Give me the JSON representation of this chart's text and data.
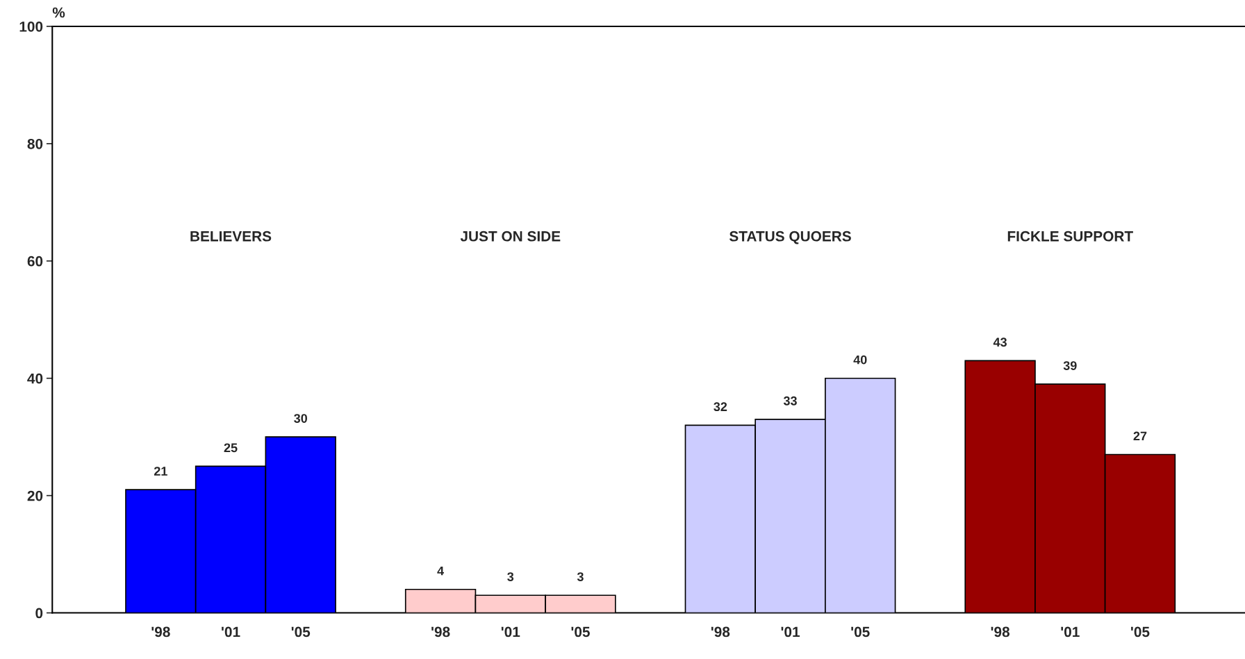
{
  "chart_data": {
    "type": "bar",
    "ylabel": "%",
    "categories": [
      "'98",
      "'01",
      "'05",
      "'98",
      "'01",
      "'05",
      "'98",
      "'01",
      "'05",
      "'98",
      "'01",
      "'05"
    ],
    "series": [
      {
        "color": "#0000ff",
        "values": [
          21,
          25,
          30,
          null,
          null,
          null,
          null,
          null,
          null,
          null,
          null,
          null
        ]
      },
      {
        "color": "#ffcccc",
        "values": [
          null,
          null,
          null,
          4,
          3,
          3,
          null,
          null,
          null,
          null,
          null,
          null
        ]
      },
      {
        "color": "#ccccff",
        "values": [
          null,
          null,
          null,
          null,
          null,
          null,
          32,
          33,
          40,
          null,
          null,
          null
        ]
      },
      {
        "color": "#990000",
        "values": [
          null,
          null,
          null,
          null,
          null,
          null,
          null,
          null,
          null,
          43,
          39,
          27
        ]
      }
    ],
    "annotations": [
      "BELIEVERS",
      "JUST ON SIDE",
      "STATUS QUOERS",
      "FICKLE SUPPORT"
    ],
    "ylim": [
      0,
      100
    ],
    "yticks": [
      0,
      20,
      40,
      60,
      80,
      100
    ],
    "data_labels": true,
    "grid": false,
    "legend": false
  }
}
